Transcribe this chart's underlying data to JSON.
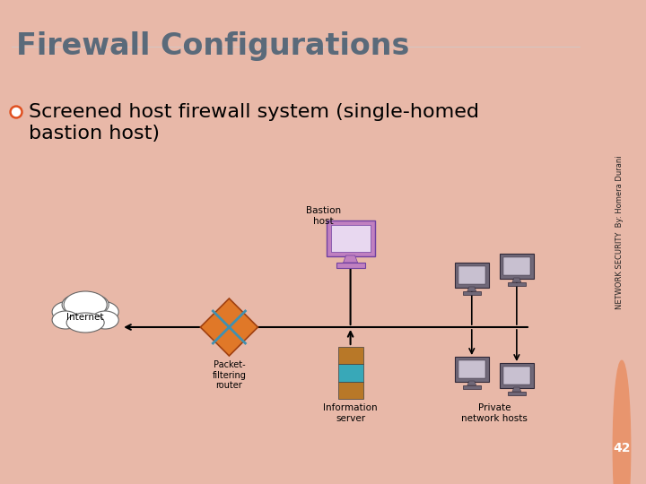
{
  "title": "Firewall Configurations",
  "bullet_text_line1": "Screened host firewall system (single-homed",
  "bullet_text_line2": "bastion host)",
  "side_text": "NETWORK SECURITY  By: Homera Durani",
  "page_number": "42",
  "bg_color": "#ffffff",
  "border_color": "#e8b8a8",
  "title_color": "#5a6a7a",
  "bullet_color": "#e05020",
  "text_color": "#000000",
  "page_bg_color": "#e8956e",
  "labels": {
    "internet": "Internet",
    "router": "Packet-\nfiltering\nrouter",
    "bastion": "Bastion\nhost",
    "info_server": "Information\nserver",
    "private": "Private\nnetwork hosts"
  }
}
